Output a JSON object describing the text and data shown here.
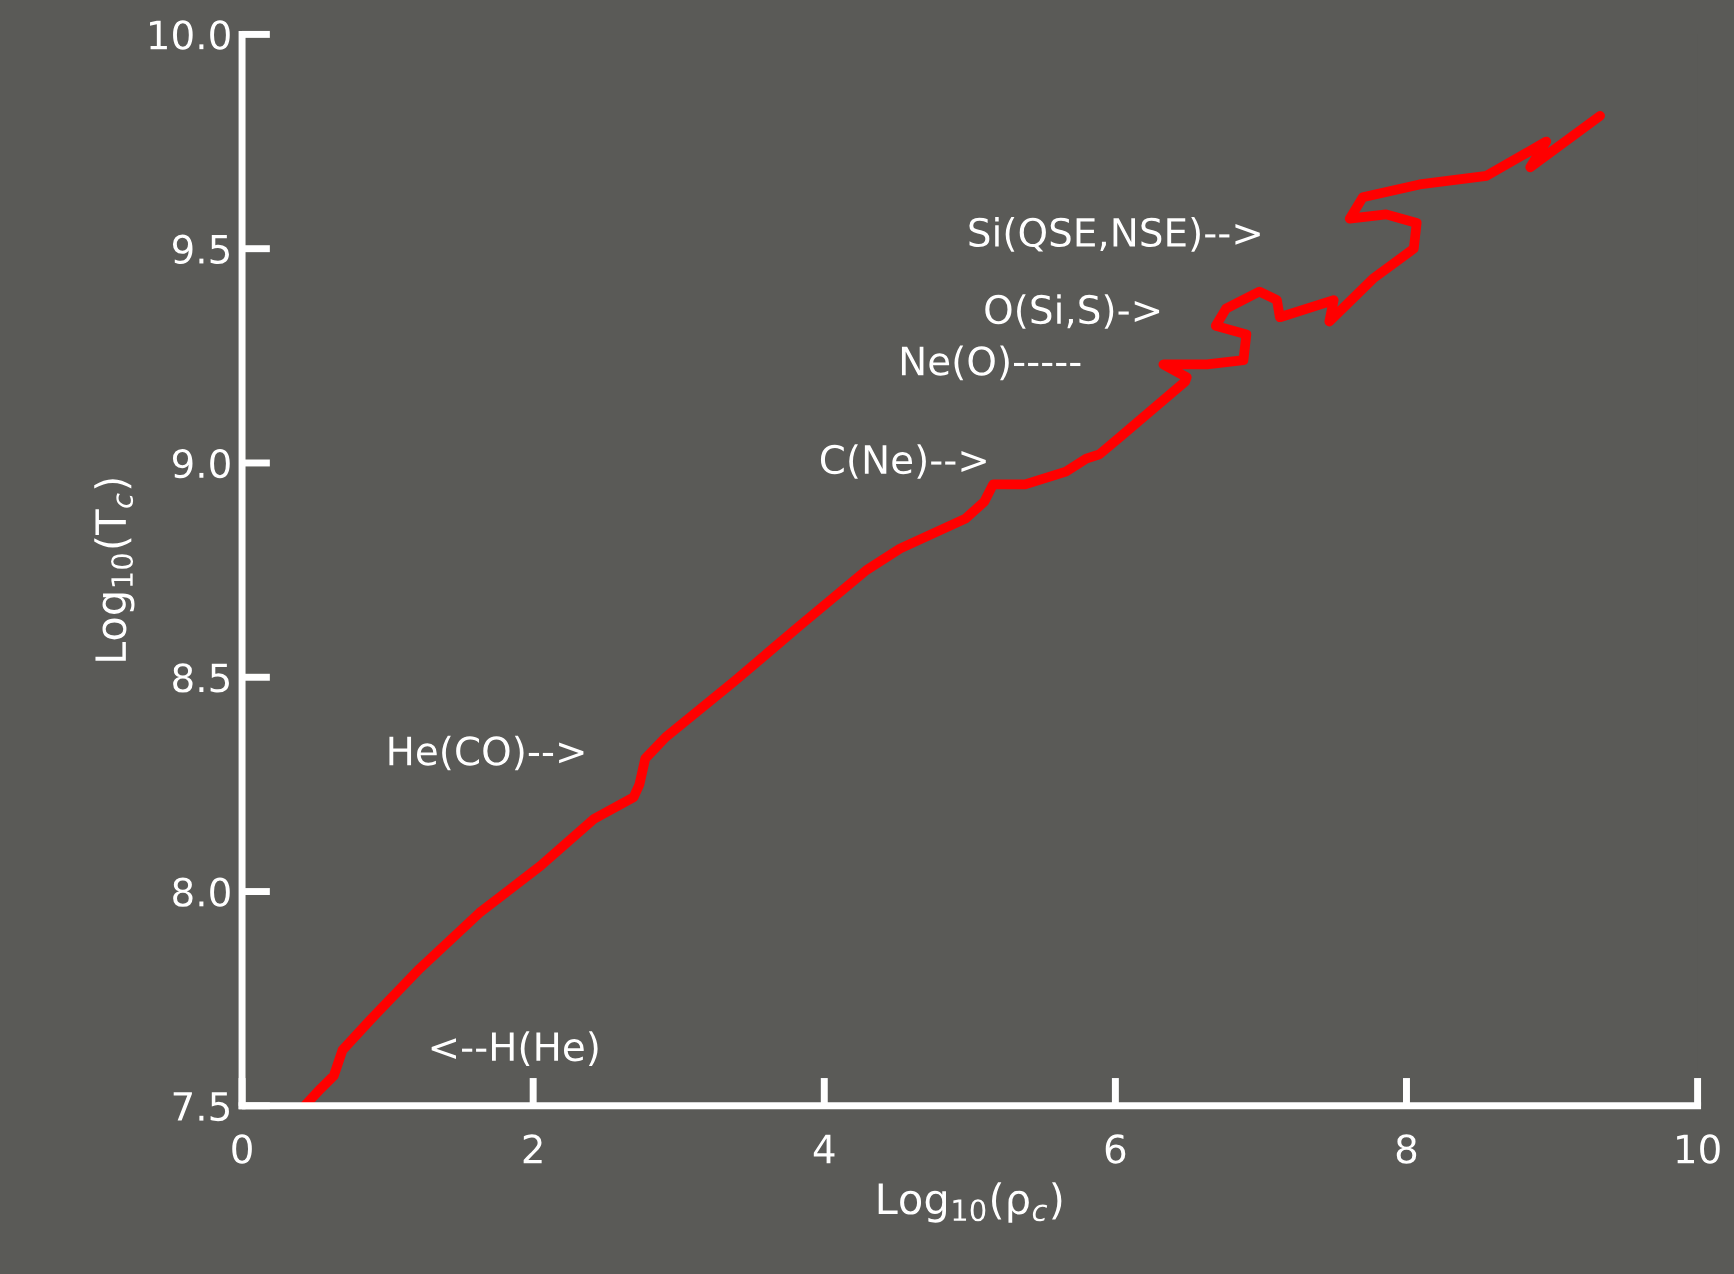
{
  "chart_data": {
    "type": "line",
    "xlabel": "Log$_{10}$(ρ$_{c}$)",
    "ylabel": "Log$_{10}$(T$_{c}$)",
    "xlim": [
      0,
      10
    ],
    "ylim": [
      7.5,
      10
    ],
    "xticks": [
      0,
      2,
      4,
      6,
      8,
      10
    ],
    "yticks": [
      {
        "value": 7.5,
        "label": "7.5"
      },
      {
        "value": 8,
        "label": "8.0"
      },
      {
        "value": 8.5,
        "label": "8.5"
      },
      {
        "value": 9,
        "label": "9.0"
      },
      {
        "value": 9.5,
        "label": "9.5"
      },
      {
        "value": 10,
        "label": "10.0"
      }
    ],
    "grid": false,
    "legend": false,
    "marker": "none",
    "line_style": "solid",
    "series": [
      {
        "color": "#ff0000",
        "x": [
          0.43,
          0.54,
          0.63,
          0.69,
          0.88,
          1.22,
          1.63,
          2.05,
          2.42,
          2.69,
          2.73,
          2.77,
          2.91,
          3.38,
          3.83,
          4.29,
          4.52,
          4.97,
          5.1,
          5.16,
          5.38,
          5.66,
          5.8,
          5.89,
          6.03,
          6.48,
          6.49,
          6.33,
          6.63,
          6.88,
          6.9,
          6.69,
          6.76,
          6.99,
          7.11,
          7.13,
          7.5,
          7.47,
          7.77,
          8.05,
          8.07,
          7.86,
          7.61,
          7.7,
          8.09,
          8.55,
          8.96,
          8.85,
          9.33
        ],
        "values": [
          7.5,
          7.54,
          7.57,
          7.63,
          7.7,
          7.82,
          7.95,
          8.06,
          8.17,
          8.22,
          8.25,
          8.31,
          8.36,
          8.49,
          8.62,
          8.75,
          8.8,
          8.87,
          8.91,
          8.95,
          8.95,
          8.98,
          9.01,
          9.02,
          9.06,
          9.19,
          9.2,
          9.23,
          9.23,
          9.24,
          9.3,
          9.32,
          9.36,
          9.4,
          9.38,
          9.34,
          9.38,
          9.33,
          9.43,
          9.5,
          9.56,
          9.58,
          9.57,
          9.62,
          9.65,
          9.67,
          9.75,
          9.69,
          9.81
        ]
      }
    ],
    "annotations": [
      "Si(QSE,NSE)-->",
      "O(Si,S)->",
      "Ne(O)-----",
      "C(Ne)-->",
      "He(CO)-->",
      "<--H(He)"
    ]
  }
}
